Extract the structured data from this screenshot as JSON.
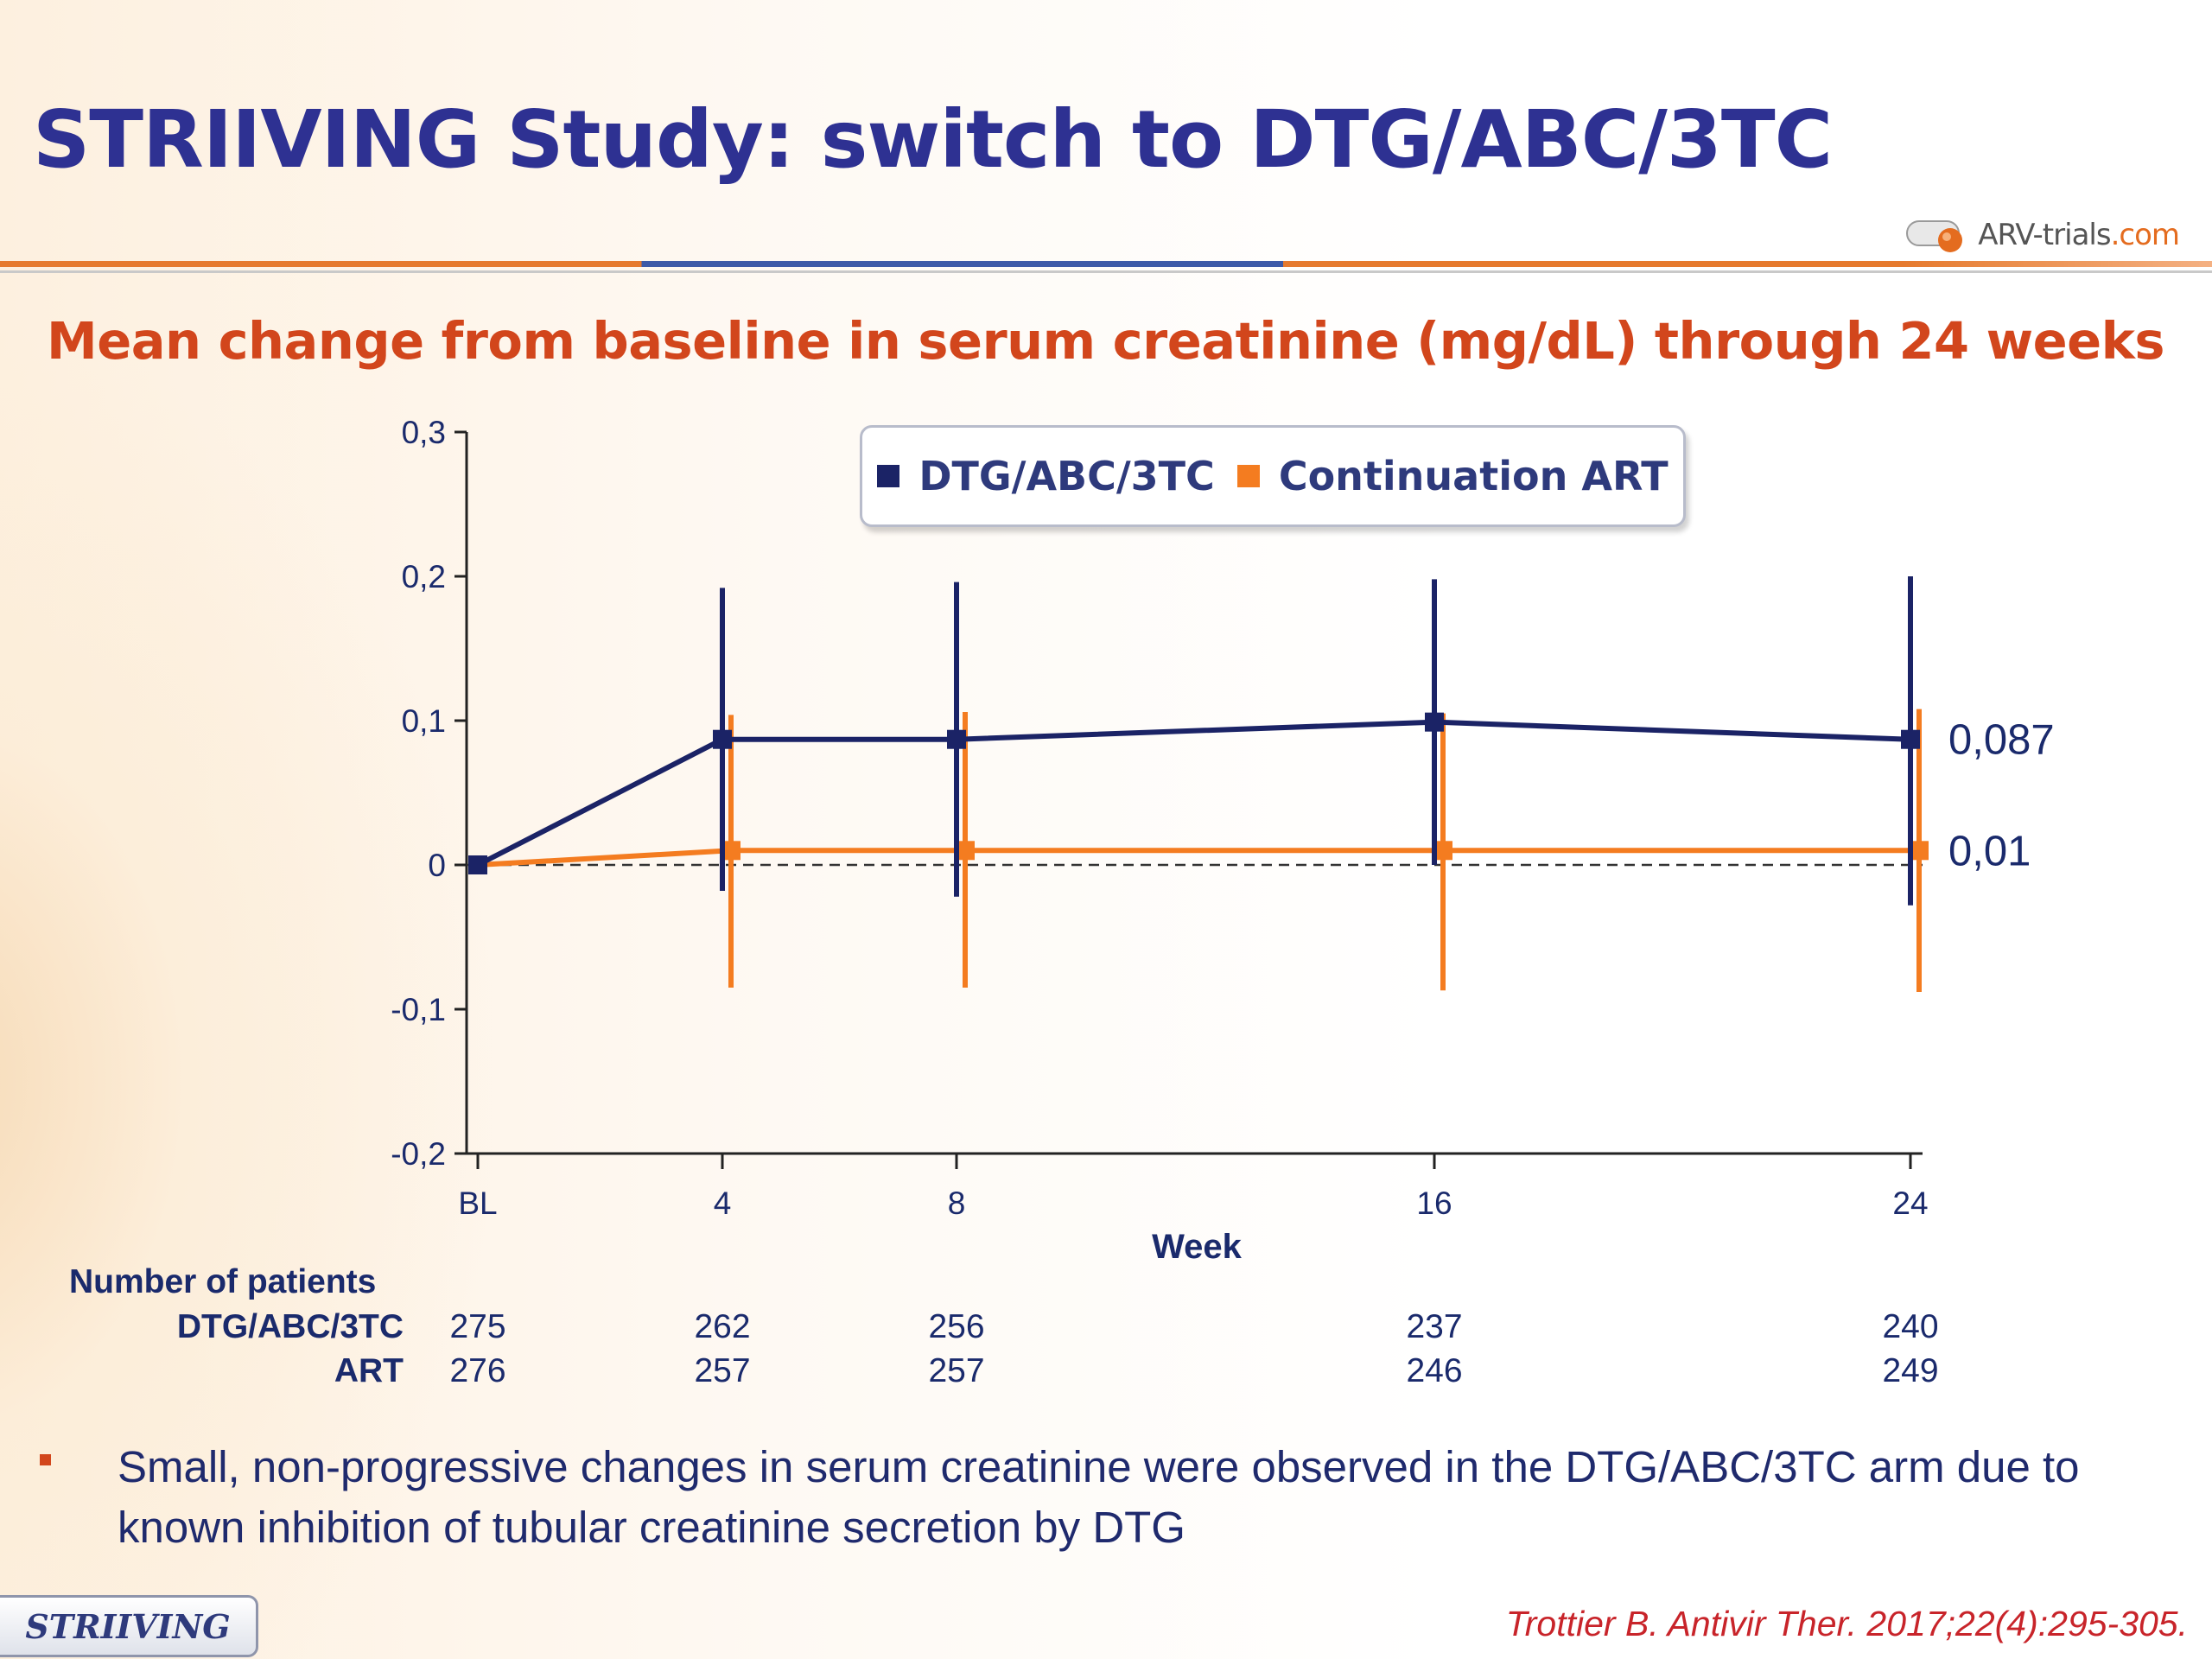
{
  "title": "STRIIVING Study: switch to DTG/ABC/3TC",
  "logo": {
    "main": "ARV-trials",
    "accent": ".com"
  },
  "subtitle": "Mean change from baseline in serum creatinine (mg/dL) through 24 weeks",
  "colors": {
    "title": "#2e3192",
    "subtitle": "#d2461c",
    "dtg": "#1b2366",
    "art": "#f47c20"
  },
  "chart_data": {
    "type": "line",
    "title": "",
    "xlabel": "Week",
    "ylabel": "",
    "categories": [
      "BL",
      "4",
      "8",
      "16",
      "24"
    ],
    "x": [
      0,
      4,
      8,
      16,
      24
    ],
    "ylim": [
      -0.2,
      0.3
    ],
    "yticks": [
      -0.2,
      -0.1,
      0,
      0.1,
      0.2,
      0.3
    ],
    "ytick_labels": [
      "-0,2",
      "-0,1",
      "0",
      "0,1",
      "0,2",
      "0,3"
    ],
    "reference_line": 0,
    "legend_position": "top",
    "series": [
      {
        "name": "DTG/ABC/3TC",
        "color": "#1b2366",
        "values": [
          0,
          0.087,
          0.087,
          0.099,
          0.087
        ],
        "error_low": [
          0,
          -0.018,
          -0.022,
          0.0,
          -0.028
        ],
        "error_high": [
          0,
          0.192,
          0.196,
          0.198,
          0.2
        ],
        "end_label": "0,087"
      },
      {
        "name": "Continuation ART",
        "color": "#f47c20",
        "values": [
          0,
          0.01,
          0.01,
          0.01,
          0.01
        ],
        "error_low": [
          0,
          -0.085,
          -0.085,
          -0.087,
          -0.088
        ],
        "error_high": [
          0,
          0.104,
          0.106,
          0.105,
          0.108
        ],
        "end_label": "0,01"
      }
    ]
  },
  "patients": {
    "heading": "Number of patients",
    "rows": [
      {
        "label": "DTG/ABC/3TC",
        "values": [
          "275",
          "262",
          "256",
          "237",
          "240"
        ]
      },
      {
        "label": "ART",
        "values": [
          "276",
          "257",
          "257",
          "246",
          "249"
        ]
      }
    ]
  },
  "bullet": "Small, non-progressive changes in serum creatinine were observed in the DTG/ABC/3TC arm due to known inhibition of tubular creatinine secretion by DTG",
  "footer": {
    "tag": "STRIIVING",
    "citation": "Trottier B. Antivir Ther. 2017;22(4):295-305."
  }
}
